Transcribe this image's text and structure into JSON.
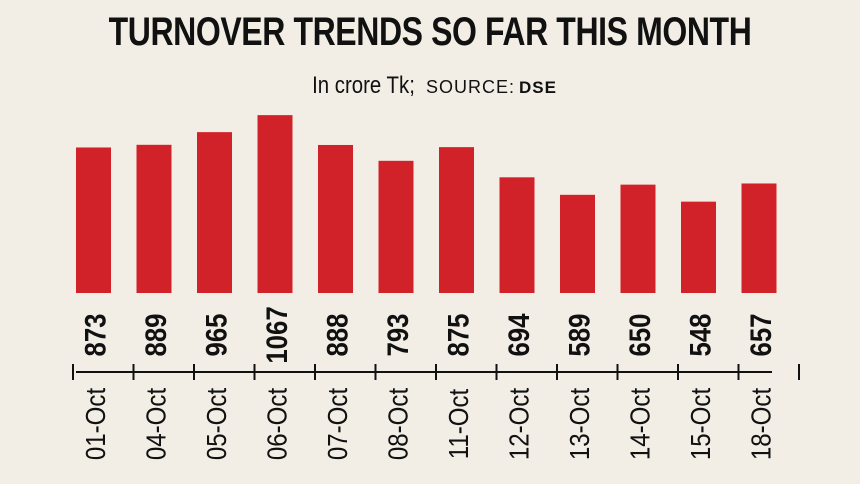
{
  "header": {
    "title": "TURNOVER TRENDS SO FAR THIS MONTH",
    "unit": "In crore Tk;",
    "source_label": "SOURCE:",
    "source_name": "DSE"
  },
  "colors": {
    "bar": "#d12229",
    "background": "#f2eee6",
    "text": "#111111"
  },
  "chart_data": {
    "type": "bar",
    "title": "TURNOVER TRENDS SO FAR THIS MONTH",
    "subtitle": "In crore Tk; SOURCE: DSE",
    "categories": [
      "01-Oct",
      "04-Oct",
      "05-Oct",
      "06-Oct",
      "07-Oct",
      "08-Oct",
      "11-Oct",
      "12-Oct",
      "13-Oct",
      "14-Oct",
      "15-Oct",
      "18-Oct"
    ],
    "values": [
      873,
      889,
      965,
      1067,
      888,
      793,
      875,
      694,
      589,
      650,
      548,
      657
    ],
    "data_labels": [
      "873",
      "889",
      "965",
      "1067",
      "888",
      "793",
      "875",
      "694",
      "589",
      "650",
      "548",
      "657"
    ],
    "xlabel": "",
    "ylabel": "",
    "grid": false,
    "legend": "none"
  }
}
